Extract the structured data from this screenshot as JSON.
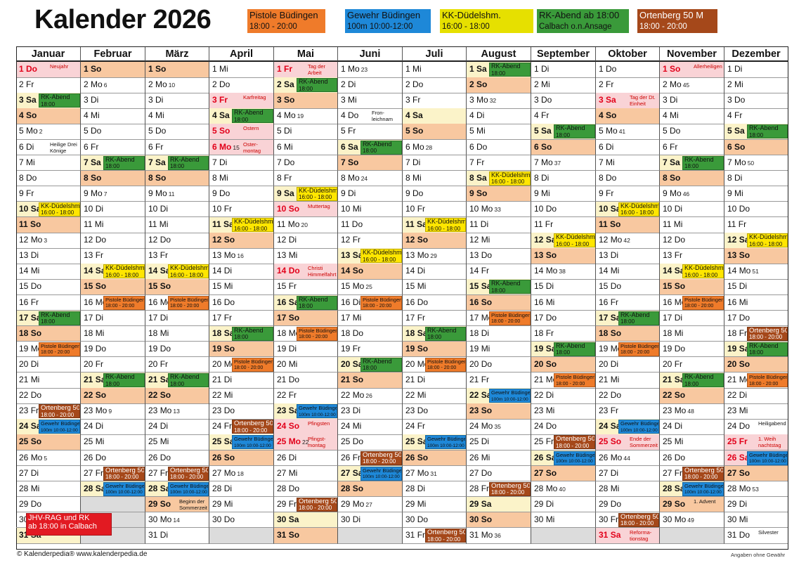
{
  "title": "Kalender 2026",
  "legend": [
    {
      "line1": "Pistole Büdingen",
      "line2": "18:00 - 20:00",
      "color": "#ef7b2a"
    },
    {
      "line1": "Gewehr Büdingen",
      "line2": "100m 10:00-12:00",
      "color": "#1e88d8"
    },
    {
      "line1": "KK-Düdelshm.",
      "line2": "16:00 - 18:00",
      "color": "#e6e000"
    },
    {
      "line1": "RK-Abend ab 18:00",
      "line2": "Calbach o.n.Ansage",
      "color": "#3a9a3a"
    },
    {
      "line1": "Ortenberg 50 M",
      "line2": "18:00 - 20:00",
      "color": "#a5481a"
    }
  ],
  "months": [
    "Januar",
    "Februar",
    "März",
    "April",
    "Mai",
    "Juni",
    "Juli",
    "August",
    "September",
    "Oktober",
    "November",
    "Dezember"
  ],
  "month_days": [
    31,
    28,
    31,
    30,
    31,
    30,
    31,
    31,
    30,
    31,
    30,
    31
  ],
  "first_weekday": [
    3,
    6,
    6,
    2,
    4,
    0,
    2,
    5,
    1,
    3,
    6,
    1
  ],
  "weekday_abbr": [
    "Mo",
    "Di",
    "Mi",
    "Do",
    "Fr",
    "Sa",
    "So"
  ],
  "holidays": [
    {
      "m": 0,
      "d": 1,
      "note": "Neujahr"
    },
    {
      "m": 0,
      "d": 6,
      "note": "Heilige Drei Könige",
      "plain": true
    },
    {
      "m": 3,
      "d": 3,
      "note": "Karfreitag"
    },
    {
      "m": 3,
      "d": 5,
      "note": "Ostern"
    },
    {
      "m": 3,
      "d": 6,
      "note": "Oster-montag"
    },
    {
      "m": 4,
      "d": 1,
      "note": "Tag der Arbeit"
    },
    {
      "m": 4,
      "d": 10,
      "note": "Muttertag"
    },
    {
      "m": 4,
      "d": 14,
      "note": "Christi Himmelfahrt"
    },
    {
      "m": 4,
      "d": 24,
      "note": "Pfingsten"
    },
    {
      "m": 4,
      "d": 25,
      "note": "Pfingst-montag"
    },
    {
      "m": 5,
      "d": 4,
      "note": "Fron-leichnam",
      "plain": true
    },
    {
      "m": 9,
      "d": 3,
      "note": "Tag der Dt. Einheit"
    },
    {
      "m": 9,
      "d": 25,
      "note": "Ende der Sommerzeit"
    },
    {
      "m": 9,
      "d": 31,
      "note": "Reforma-tionstag"
    },
    {
      "m": 10,
      "d": 1,
      "note": "Allerheiligen"
    },
    {
      "m": 11,
      "d": 24,
      "note": "Heiligabend",
      "plain": true
    },
    {
      "m": 11,
      "d": 25,
      "note": "1. Weih nachtstag"
    },
    {
      "m": 11,
      "d": 26,
      "note": "2. Weih nachtstag"
    },
    {
      "m": 11,
      "d": 31,
      "note": "Silvester",
      "plain": true
    },
    {
      "m": 2,
      "d": 29,
      "note": "Beginn der Sommerzeit",
      "plain": true
    },
    {
      "m": 10,
      "d": 29,
      "note": "1. Advent",
      "plain": true
    }
  ],
  "week_numbers": [
    {
      "m": 0,
      "d": 5,
      "w": "2"
    },
    {
      "m": 0,
      "d": 12,
      "w": "3"
    },
    {
      "m": 0,
      "d": 19,
      "w": "4"
    },
    {
      "m": 0,
      "d": 26,
      "w": "5"
    },
    {
      "m": 1,
      "d": 2,
      "w": "6"
    },
    {
      "m": 1,
      "d": 9,
      "w": "7"
    },
    {
      "m": 1,
      "d": 16,
      "w": "8"
    },
    {
      "m": 1,
      "d": 23,
      "w": "9"
    },
    {
      "m": 2,
      "d": 2,
      "w": "10"
    },
    {
      "m": 2,
      "d": 9,
      "w": "11"
    },
    {
      "m": 2,
      "d": 16,
      "w": "12"
    },
    {
      "m": 2,
      "d": 23,
      "w": "13"
    },
    {
      "m": 2,
      "d": 30,
      "w": "14"
    },
    {
      "m": 3,
      "d": 6,
      "w": "15"
    },
    {
      "m": 3,
      "d": 13,
      "w": "16"
    },
    {
      "m": 3,
      "d": 20,
      "w": "17"
    },
    {
      "m": 3,
      "d": 27,
      "w": "18"
    },
    {
      "m": 4,
      "d": 4,
      "w": "19"
    },
    {
      "m": 4,
      "d": 11,
      "w": "20"
    },
    {
      "m": 4,
      "d": 18,
      "w": "21"
    },
    {
      "m": 4,
      "d": 25,
      "w": "22"
    },
    {
      "m": 5,
      "d": 1,
      "w": "23"
    },
    {
      "m": 5,
      "d": 8,
      "w": "24"
    },
    {
      "m": 5,
      "d": 15,
      "w": "25"
    },
    {
      "m": 5,
      "d": 22,
      "w": "26"
    },
    {
      "m": 5,
      "d": 29,
      "w": "27"
    },
    {
      "m": 6,
      "d": 6,
      "w": "28"
    },
    {
      "m": 6,
      "d": 13,
      "w": "29"
    },
    {
      "m": 6,
      "d": 20,
      "w": "30"
    },
    {
      "m": 6,
      "d": 27,
      "w": "31"
    },
    {
      "m": 7,
      "d": 3,
      "w": "32"
    },
    {
      "m": 7,
      "d": 10,
      "w": "33"
    },
    {
      "m": 7,
      "d": 17,
      "w": "34"
    },
    {
      "m": 7,
      "d": 24,
      "w": "35"
    },
    {
      "m": 7,
      "d": 31,
      "w": "36"
    },
    {
      "m": 8,
      "d": 7,
      "w": "37"
    },
    {
      "m": 8,
      "d": 14,
      "w": "38"
    },
    {
      "m": 8,
      "d": 21,
      "w": "39"
    },
    {
      "m": 8,
      "d": 28,
      "w": "40"
    },
    {
      "m": 9,
      "d": 5,
      "w": "41"
    },
    {
      "m": 9,
      "d": 12,
      "w": "42"
    },
    {
      "m": 9,
      "d": 19,
      "w": "43"
    },
    {
      "m": 9,
      "d": 26,
      "w": "44"
    },
    {
      "m": 10,
      "d": 2,
      "w": "45"
    },
    {
      "m": 10,
      "d": 9,
      "w": "46"
    },
    {
      "m": 10,
      "d": 16,
      "w": "47"
    },
    {
      "m": 10,
      "d": 23,
      "w": "48"
    },
    {
      "m": 10,
      "d": 30,
      "w": "49"
    },
    {
      "m": 11,
      "d": 7,
      "w": "50"
    },
    {
      "m": 11,
      "d": 14,
      "w": "51"
    },
    {
      "m": 11,
      "d": 21,
      "w": "52"
    },
    {
      "m": 11,
      "d": 28,
      "w": "53"
    }
  ],
  "events": [
    {
      "type": "rk",
      "m": 0,
      "d": 3,
      "l1": "RK-Abend",
      "l2": "18:00"
    },
    {
      "type": "kk",
      "m": 0,
      "d": 10,
      "l1": "KK-Düdelshm.",
      "l2": "16:00 - 18:00"
    },
    {
      "type": "rk",
      "m": 0,
      "d": 17,
      "l1": "RK-Abend",
      "l2": "18:00"
    },
    {
      "type": "pb",
      "m": 0,
      "d": 19,
      "l1": "Pistole Büdingen",
      "l2": "18:00 - 20:00"
    },
    {
      "type": "ob",
      "m": 0,
      "d": 23,
      "l1": "Ortenberg 50 M",
      "l2": "18:00 - 20:00"
    },
    {
      "type": "gb",
      "m": 0,
      "d": 24,
      "l1": "Gewehr Büdingen",
      "l2": "100m 10:00-12:00"
    },
    {
      "type": "jhv",
      "m": 0,
      "d": 30,
      "l1": "JHV-RAG und RK",
      "l2": "ab 18:00 in Calbach"
    },
    {
      "type": "rk",
      "m": 1,
      "d": 7,
      "l1": "RK-Abend",
      "l2": "18:00"
    },
    {
      "type": "kk",
      "m": 1,
      "d": 14,
      "l1": "KK-Düdelshm.",
      "l2": "16:00 - 18:00"
    },
    {
      "type": "pb",
      "m": 1,
      "d": 16,
      "l1": "Pistole Büdingen",
      "l2": "18:00 - 20:00"
    },
    {
      "type": "rk",
      "m": 1,
      "d": 21,
      "l1": "RK-Abend",
      "l2": "18:00"
    },
    {
      "type": "ob",
      "m": 1,
      "d": 27,
      "l1": "Ortenberg 50 M",
      "l2": "18:00 - 20:00"
    },
    {
      "type": "gb",
      "m": 1,
      "d": 28,
      "l1": "Gewehr Büdingen",
      "l2": "100m 10:00-12:00"
    },
    {
      "type": "rk",
      "m": 2,
      "d": 7,
      "l1": "RK-Abend",
      "l2": "18:00"
    },
    {
      "type": "kk",
      "m": 2,
      "d": 14,
      "l1": "KK-Düdelshm.",
      "l2": "16:00 - 18:00"
    },
    {
      "type": "pb",
      "m": 2,
      "d": 16,
      "l1": "Pistole Büdingen",
      "l2": "18:00 - 20:00"
    },
    {
      "type": "rk",
      "m": 2,
      "d": 21,
      "l1": "RK-Abend",
      "l2": "18:00"
    },
    {
      "type": "ob",
      "m": 2,
      "d": 27,
      "l1": "Ortenberg 50 M",
      "l2": "18:00 - 20:00"
    },
    {
      "type": "gb",
      "m": 2,
      "d": 28,
      "l1": "Gewehr Büdingen",
      "l2": "100m 10:00-12:00"
    },
    {
      "type": "rk",
      "m": 3,
      "d": 4,
      "l1": "RK-Abend",
      "l2": "18:00"
    },
    {
      "type": "kk",
      "m": 3,
      "d": 11,
      "l1": "KK-Düdelshm.",
      "l2": "16:00 - 18:00"
    },
    {
      "type": "rk",
      "m": 3,
      "d": 18,
      "l1": "RK-Abend",
      "l2": "18:00"
    },
    {
      "type": "pb",
      "m": 3,
      "d": 20,
      "l1": "Pistole Büdingen",
      "l2": "18:00 - 20:00"
    },
    {
      "type": "ob",
      "m": 3,
      "d": 24,
      "l1": "Ortenberg 50 M",
      "l2": "18:00 - 20:00"
    },
    {
      "type": "gb",
      "m": 3,
      "d": 25,
      "l1": "Gewehr Büdingen",
      "l2": "100m 10:00-12:00"
    },
    {
      "type": "rk",
      "m": 4,
      "d": 2,
      "l1": "RK-Abend",
      "l2": "18:00"
    },
    {
      "type": "kk",
      "m": 4,
      "d": 9,
      "l1": "KK-Düdelshm.",
      "l2": "16:00 - 18:00"
    },
    {
      "type": "rk",
      "m": 4,
      "d": 16,
      "l1": "RK-Abend",
      "l2": "18:00"
    },
    {
      "type": "pb",
      "m": 4,
      "d": 18,
      "l1": "Pistole Büdingen",
      "l2": "18:00 - 20:00"
    },
    {
      "type": "gb",
      "m": 4,
      "d": 23,
      "l1": "Gewehr Büdingen",
      "l2": "100m 10:00-12:00"
    },
    {
      "type": "ob",
      "m": 4,
      "d": 29,
      "l1": "Ortenberg 50 M",
      "l2": "18:00 - 20:00"
    },
    {
      "type": "rk",
      "m": 5,
      "d": 6,
      "l1": "RK-Abend",
      "l2": "18:00"
    },
    {
      "type": "kk",
      "m": 5,
      "d": 13,
      "l1": "KK-Düdelshm.",
      "l2": "16:00 - 18:00"
    },
    {
      "type": "pb",
      "m": 5,
      "d": 16,
      "l1": "Pistole Büdingen",
      "l2": "18:00 - 20:00"
    },
    {
      "type": "rk",
      "m": 5,
      "d": 20,
      "l1": "RK-Abend",
      "l2": "18:00"
    },
    {
      "type": "ob",
      "m": 5,
      "d": 26,
      "l1": "Ortenberg 50 M",
      "l2": "18:00 - 20:00"
    },
    {
      "type": "gb",
      "m": 5,
      "d": 27,
      "l1": "Gewehr Büdingen",
      "l2": "100m 10:00-12:00"
    },
    {
      "type": "kk",
      "m": 6,
      "d": 11,
      "l1": "KK-Düdelshm.",
      "l2": "16:00 - 18:00"
    },
    {
      "type": "rk",
      "m": 6,
      "d": 18,
      "l1": "RK-Abend",
      "l2": "18:00"
    },
    {
      "type": "pb",
      "m": 6,
      "d": 20,
      "l1": "Pistole Büdingen",
      "l2": "18:00 - 20:00"
    },
    {
      "type": "gb",
      "m": 6,
      "d": 25,
      "l1": "Gewehr Büdingen",
      "l2": "100m 10:00-12:00"
    },
    {
      "type": "ob",
      "m": 6,
      "d": 31,
      "l1": "Ortenberg 50 M",
      "l2": "18:00 - 20:00"
    },
    {
      "type": "rk",
      "m": 7,
      "d": 1,
      "l1": "RK-Abend",
      "l2": "18:00"
    },
    {
      "type": "kk",
      "m": 7,
      "d": 8,
      "l1": "KK-Düdelshm.",
      "l2": "16:00 - 18:00"
    },
    {
      "type": "rk",
      "m": 7,
      "d": 15,
      "l1": "RK-Abend",
      "l2": "18:00"
    },
    {
      "type": "pb",
      "m": 7,
      "d": 17,
      "l1": "Pistole Büdingen",
      "l2": "18:00 - 20:00"
    },
    {
      "type": "gb",
      "m": 7,
      "d": 22,
      "l1": "Gewehr Büdingen",
      "l2": "100m 10:00-12:00"
    },
    {
      "type": "ob",
      "m": 7,
      "d": 28,
      "l1": "Ortenberg 50 M",
      "l2": "18:00 - 20:00"
    },
    {
      "type": "rk",
      "m": 8,
      "d": 5,
      "l1": "RK-Abend",
      "l2": "18:00"
    },
    {
      "type": "kk",
      "m": 8,
      "d": 12,
      "l1": "KK-Düdelshm.",
      "l2": "16:00 - 18:00"
    },
    {
      "type": "rk",
      "m": 8,
      "d": 19,
      "l1": "RK-Abend",
      "l2": "18:00"
    },
    {
      "type": "pb",
      "m": 8,
      "d": 21,
      "l1": "Pistole Büdingen",
      "l2": "18:00 - 20:00"
    },
    {
      "type": "ob",
      "m": 8,
      "d": 25,
      "l1": "Ortenberg 50 M",
      "l2": "18:00 - 20:00"
    },
    {
      "type": "gb",
      "m": 8,
      "d": 26,
      "l1": "Gewehr Büdingen",
      "l2": "100m 10:00-12:00"
    },
    {
      "type": "kk",
      "m": 9,
      "d": 10,
      "l1": "KK-Düdelshm.",
      "l2": "16:00 - 18:00"
    },
    {
      "type": "rk",
      "m": 9,
      "d": 17,
      "l1": "RK-Abend",
      "l2": "18:00"
    },
    {
      "type": "pb",
      "m": 9,
      "d": 19,
      "l1": "Pistole Büdingen",
      "l2": "18:00 - 20:00"
    },
    {
      "type": "gb",
      "m": 9,
      "d": 24,
      "l1": "Gewehr Büdingen",
      "l2": "100m 10:00-12:00"
    },
    {
      "type": "ob",
      "m": 9,
      "d": 30,
      "l1": "Ortenberg 50 M",
      "l2": "18:00 - 20:00"
    },
    {
      "type": "rk",
      "m": 10,
      "d": 7,
      "l1": "RK-Abend",
      "l2": "18:00"
    },
    {
      "type": "kk",
      "m": 10,
      "d": 14,
      "l1": "KK-Düdelshm.",
      "l2": "16:00 - 18:00"
    },
    {
      "type": "pb",
      "m": 10,
      "d": 16,
      "l1": "Pistole Büdingen",
      "l2": "18:00 - 20:00"
    },
    {
      "type": "rk",
      "m": 10,
      "d": 21,
      "l1": "RK-Abend",
      "l2": "18:00"
    },
    {
      "type": "ob",
      "m": 10,
      "d": 27,
      "l1": "Ortenberg 50 M",
      "l2": "18:00 - 20:00"
    },
    {
      "type": "gb",
      "m": 10,
      "d": 28,
      "l1": "Gewehr Büdingen",
      "l2": "100m 10:00-12:00"
    },
    {
      "type": "rk",
      "m": 11,
      "d": 5,
      "l1": "RK-Abend",
      "l2": "18:00"
    },
    {
      "type": "kk",
      "m": 11,
      "d": 12,
      "l1": "KK-Düdelshm.",
      "l2": "16:00 - 18:00"
    },
    {
      "type": "ob",
      "m": 11,
      "d": 18,
      "l1": "Ortenberg 50 M",
      "l2": "18:00 - 20:00"
    },
    {
      "type": "rk",
      "m": 11,
      "d": 19,
      "l1": "RK-Abend",
      "l2": "18:00"
    },
    {
      "type": "pb",
      "m": 11,
      "d": 21,
      "l1": "Pistole Büdingen",
      "l2": "18:00 - 20:00"
    },
    {
      "type": "gb",
      "m": 11,
      "d": 26,
      "l1": "Gewehr Büdingen",
      "l2": "100m 10:00-12:00"
    }
  ],
  "footer_left": "© Kalenderpedia®   www.kalenderpedia.de",
  "footer_right": "Angaben ohne Gewähr"
}
